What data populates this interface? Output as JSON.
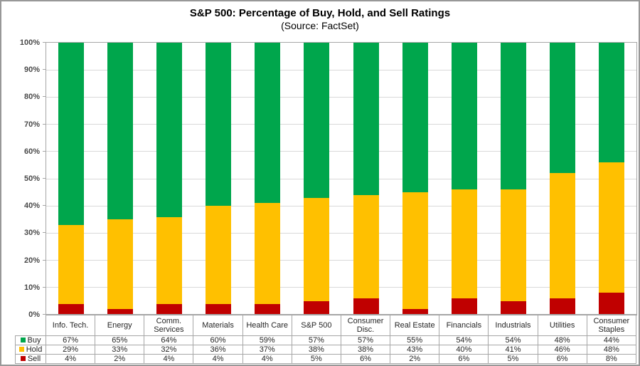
{
  "title": "S&P 500: Percentage of Buy, Hold, and Sell Ratings",
  "subtitle": "(Source: FactSet)",
  "colors": {
    "buy": "#00A64C",
    "hold": "#FFC000",
    "sell": "#C00000",
    "grid": "#D9D9D9",
    "axis": "#A6A6A6",
    "text": "#262626"
  },
  "chart_data": {
    "type": "bar",
    "stacked": true,
    "title": "S&P 500: Percentage of Buy, Hold, and Sell Ratings",
    "subtitle": "(Source: FactSet)",
    "categories": [
      "Info. Tech.",
      "Energy",
      "Comm. Services",
      "Materials",
      "Health Care",
      "S&P 500",
      "Consumer Disc.",
      "Real Estate",
      "Financials",
      "Industrials",
      "Utilities",
      "Consumer Staples"
    ],
    "series": [
      {
        "name": "Buy",
        "color": "#00A64C",
        "values": [
          67,
          65,
          64,
          60,
          59,
          57,
          57,
          55,
          54,
          54,
          48,
          44
        ]
      },
      {
        "name": "Hold",
        "color": "#FFC000",
        "values": [
          29,
          33,
          32,
          36,
          37,
          38,
          38,
          43,
          40,
          41,
          46,
          48
        ]
      },
      {
        "name": "Sell",
        "color": "#C00000",
        "values": [
          4,
          2,
          4,
          4,
          4,
          5,
          6,
          2,
          6,
          5,
          6,
          8
        ]
      }
    ],
    "value_suffix": "%",
    "y_ticks": [
      "100%",
      "90%",
      "80%",
      "70%",
      "60%",
      "50%",
      "40%",
      "30%",
      "20%",
      "10%",
      "0%"
    ],
    "ylim": [
      0,
      100
    ],
    "grid": true,
    "legend_position": "table-left",
    "data_table": true
  }
}
